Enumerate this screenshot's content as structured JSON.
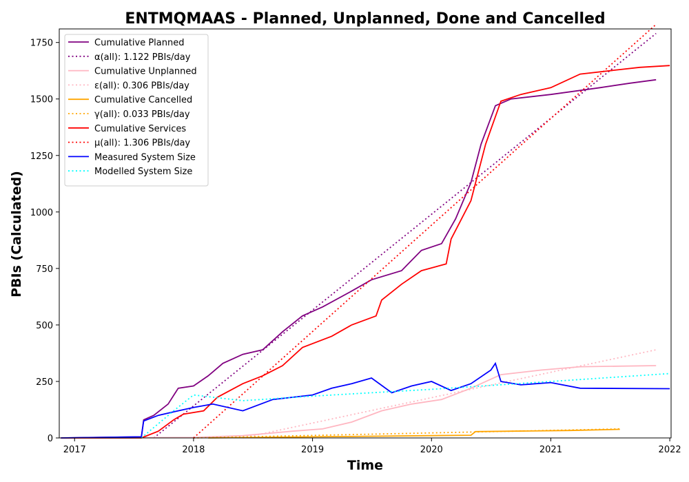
{
  "chart_data": {
    "type": "line",
    "title": "ENTMQMAAS - Planned, Unplanned, Done  and Cancelled",
    "xlabel": "Time",
    "ylabel": "PBIs (Calculated)",
    "x_ticks": [
      "2017",
      "2018",
      "2019",
      "2020",
      "2021",
      "2022"
    ],
    "y_ticks": [
      "0",
      "250",
      "500",
      "750",
      "1000",
      "1250",
      "1500",
      "1750"
    ],
    "xlim": [
      "2016-11-15",
      "2022-01-05"
    ],
    "ylim": [
      0,
      1810
    ],
    "grid": false,
    "legend_position": "top-left",
    "series": [
      {
        "name": "Cumulative Planned",
        "style": "solid",
        "color": "#800080",
        "points": [
          [
            "2016-11-20",
            0
          ],
          [
            "2017-03-01",
            2
          ],
          [
            "2017-07-25",
            5
          ],
          [
            "2017-08-01",
            80
          ],
          [
            "2017-09-01",
            100
          ],
          [
            "2017-10-15",
            150
          ],
          [
            "2017-11-15",
            220
          ],
          [
            "2018-01-01",
            230
          ],
          [
            "2018-02-15",
            275
          ],
          [
            "2018-04-01",
            330
          ],
          [
            "2018-06-01",
            370
          ],
          [
            "2018-08-01",
            390
          ],
          [
            "2018-10-01",
            470
          ],
          [
            "2018-12-01",
            540
          ],
          [
            "2019-02-01",
            580
          ],
          [
            "2019-05-01",
            650
          ],
          [
            "2019-07-01",
            700
          ],
          [
            "2019-10-01",
            740
          ],
          [
            "2019-12-01",
            830
          ],
          [
            "2020-02-01",
            860
          ],
          [
            "2020-03-15",
            970
          ],
          [
            "2020-05-01",
            1130
          ],
          [
            "2020-06-01",
            1300
          ],
          [
            "2020-07-15",
            1470
          ],
          [
            "2020-09-01",
            1500
          ],
          [
            "2021-01-01",
            1520
          ],
          [
            "2021-06-01",
            1550
          ],
          [
            "2021-09-01",
            1570
          ],
          [
            "2021-11-20",
            1585
          ]
        ]
      },
      {
        "name": "α(all): 1.122 PBIs/day",
        "style": "dotted",
        "color": "#800080",
        "points": [
          [
            "2017-09-01",
            0
          ],
          [
            "2021-11-20",
            1790
          ]
        ]
      },
      {
        "name": "Cumulative Unplanned",
        "style": "solid",
        "color": "#ffb6c1",
        "points": [
          [
            "2016-11-20",
            0
          ],
          [
            "2018-01-01",
            2
          ],
          [
            "2018-06-01",
            10
          ],
          [
            "2018-11-01",
            30
          ],
          [
            "2019-02-01",
            40
          ],
          [
            "2019-05-01",
            70
          ],
          [
            "2019-08-01",
            120
          ],
          [
            "2019-11-01",
            150
          ],
          [
            "2020-02-01",
            170
          ],
          [
            "2020-05-01",
            220
          ],
          [
            "2020-08-01",
            280
          ],
          [
            "2020-12-01",
            300
          ],
          [
            "2021-04-01",
            315
          ],
          [
            "2021-11-20",
            320
          ]
        ]
      },
      {
        "name": "ε(all): 0.306 PBIs/day",
        "style": "dotted",
        "color": "#ffb6c1",
        "points": [
          [
            "2018-06-01",
            0
          ],
          [
            "2021-11-20",
            390
          ]
        ]
      },
      {
        "name": "Cumulative Cancelled",
        "style": "solid",
        "color": "#ffa500",
        "points": [
          [
            "2018-02-15",
            0
          ],
          [
            "2019-01-01",
            5
          ],
          [
            "2020-05-01",
            12
          ],
          [
            "2020-05-15",
            28
          ],
          [
            "2020-09-01",
            30
          ],
          [
            "2021-03-01",
            33
          ],
          [
            "2021-08-01",
            38
          ]
        ]
      },
      {
        "name": "γ(all): 0.033 PBIs/day",
        "style": "dotted",
        "color": "#ffa500",
        "points": [
          [
            "2018-01-01",
            0
          ],
          [
            "2021-08-01",
            40
          ]
        ]
      },
      {
        "name": "Cumulative Services",
        "style": "solid",
        "color": "#ff0000",
        "points": [
          [
            "2016-11-20",
            0
          ],
          [
            "2017-07-25",
            0
          ],
          [
            "2017-09-15",
            30
          ],
          [
            "2017-11-01",
            80
          ],
          [
            "2017-12-01",
            105
          ],
          [
            "2018-02-01",
            120
          ],
          [
            "2018-03-15",
            180
          ],
          [
            "2018-06-01",
            240
          ],
          [
            "2018-08-01",
            275
          ],
          [
            "2018-10-01",
            320
          ],
          [
            "2018-12-01",
            400
          ],
          [
            "2019-03-01",
            450
          ],
          [
            "2019-05-01",
            500
          ],
          [
            "2019-07-15",
            540
          ],
          [
            "2019-08-01",
            610
          ],
          [
            "2019-10-01",
            680
          ],
          [
            "2019-12-01",
            740
          ],
          [
            "2020-02-15",
            770
          ],
          [
            "2020-03-01",
            880
          ],
          [
            "2020-05-01",
            1050
          ],
          [
            "2020-06-15",
            1300
          ],
          [
            "2020-08-01",
            1490
          ],
          [
            "2020-10-01",
            1520
          ],
          [
            "2021-01-01",
            1550
          ],
          [
            "2021-04-01",
            1610
          ],
          [
            "2021-10-01",
            1640
          ],
          [
            "2022-01-01",
            1648
          ]
        ]
      },
      {
        "name": "μ(all): 1.306 PBIs/day",
        "style": "dotted",
        "color": "#ff0000",
        "points": [
          [
            "2018-01-01",
            0
          ],
          [
            "2021-11-20",
            1830
          ]
        ]
      },
      {
        "name": "Measured System Size",
        "style": "solid",
        "color": "#0000ff",
        "points": [
          [
            "2016-11-20",
            0
          ],
          [
            "2017-07-25",
            5
          ],
          [
            "2017-08-01",
            75
          ],
          [
            "2017-09-15",
            100
          ],
          [
            "2017-11-15",
            120
          ],
          [
            "2018-01-01",
            135
          ],
          [
            "2018-03-01",
            150
          ],
          [
            "2018-06-01",
            120
          ],
          [
            "2018-09-01",
            170
          ],
          [
            "2019-01-01",
            190
          ],
          [
            "2019-03-01",
            220
          ],
          [
            "2019-05-01",
            240
          ],
          [
            "2019-07-01",
            265
          ],
          [
            "2019-09-01",
            200
          ],
          [
            "2019-11-01",
            230
          ],
          [
            "2020-01-01",
            250
          ],
          [
            "2020-03-01",
            210
          ],
          [
            "2020-05-01",
            240
          ],
          [
            "2020-07-01",
            300
          ],
          [
            "2020-07-15",
            330
          ],
          [
            "2020-08-01",
            250
          ],
          [
            "2020-10-01",
            235
          ],
          [
            "2021-01-01",
            245
          ],
          [
            "2021-04-01",
            220
          ],
          [
            "2022-01-01",
            218
          ]
        ]
      },
      {
        "name": "Modelled System Size",
        "style": "dotted",
        "color": "#00ffff",
        "points": [
          [
            "2017-07-25",
            0
          ],
          [
            "2017-11-01",
            120
          ],
          [
            "2018-01-01",
            190
          ],
          [
            "2018-06-01",
            165
          ],
          [
            "2019-01-01",
            185
          ],
          [
            "2020-01-01",
            215
          ],
          [
            "2021-01-01",
            250
          ],
          [
            "2022-01-01",
            285
          ]
        ]
      }
    ]
  }
}
